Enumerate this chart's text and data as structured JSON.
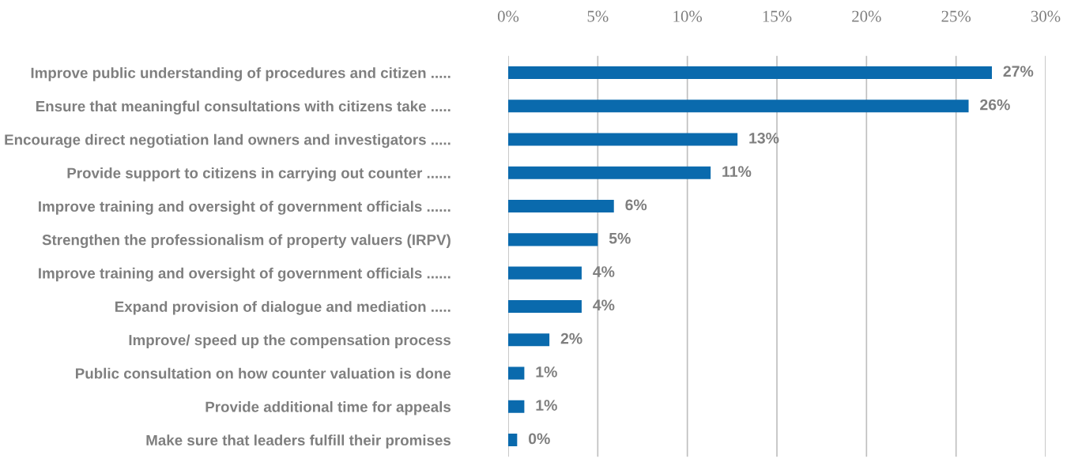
{
  "chart_data": {
    "type": "bar",
    "orientation": "horizontal",
    "categories": [
      "Improve public understanding of procedures and citizen .....",
      "Ensure that meaningful consultations with citizens take .....",
      "Encourage direct negotiation land owners and investigators .....",
      "Provide support to citizens in carrying out counter ......",
      "Improve training and oversight of government officials ......",
      "Strengthen the professionalism of property valuers (IRPV)",
      "Improve training and oversight of government officials ......",
      "Expand provision of dialogue and mediation .....",
      "Improve/ speed up the compensation process",
      "Public consultation on how counter valuation is done",
      "Provide additional time for appeals",
      "Make sure that leaders fulfill their promises"
    ],
    "values": [
      27.0,
      25.7,
      12.8,
      11.3,
      5.9,
      5.0,
      4.1,
      4.1,
      2.3,
      0.9,
      0.9,
      0.5
    ],
    "value_labels": [
      "27%",
      "26%",
      "13%",
      "11%",
      "6%",
      "5%",
      "4%",
      "4%",
      "2%",
      "1%",
      "1%",
      "0%"
    ],
    "color": "#0a6aad",
    "xlim": [
      0,
      30
    ],
    "xticks": [
      {
        "value": 0,
        "label": "0%"
      },
      {
        "value": 5,
        "label": "5%"
      },
      {
        "value": 10,
        "label": "10%"
      },
      {
        "value": 15,
        "label": "15%"
      },
      {
        "value": 20,
        "label": "20%"
      },
      {
        "value": 25,
        "label": "25%"
      },
      {
        "value": 30,
        "label": "30%"
      }
    ],
    "grid": "x"
  }
}
